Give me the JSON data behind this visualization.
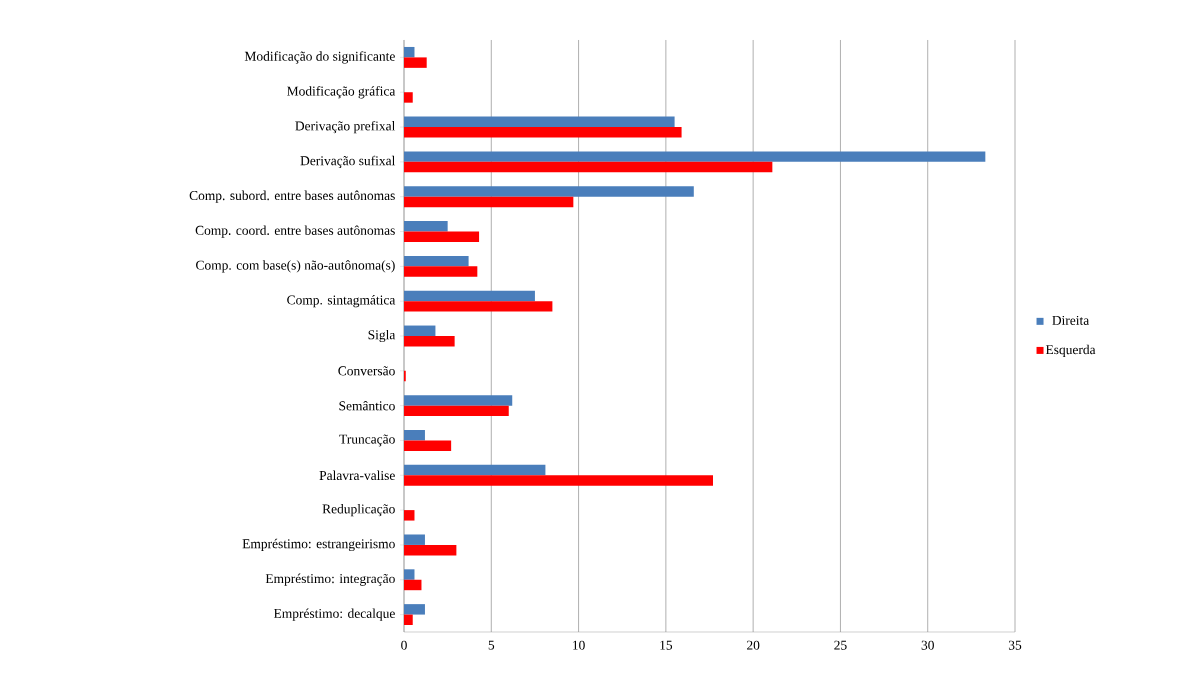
{
  "chart_data": {
    "type": "bar",
    "orientation": "horizontal",
    "categories": [
      "Modificação do significante",
      "Modificação gráfica",
      "Derivação prefixal",
      "Derivação sufixal",
      "Comp. subord. entre bases autônomas",
      "Comp. coord. entre bases autônomas",
      "Comp. com base(s) não-autônoma(s)",
      "Comp. sintagmática",
      "Sigla",
      "Conversão",
      "Semântico",
      "Truncação",
      "Palavra-valise",
      "Reduplicação",
      "Empréstimo: estrangeirismo",
      "Empréstimo: integração",
      "Empréstimo: decalque"
    ],
    "series": [
      {
        "name": "Direita",
        "color": "#4a7ebb",
        "values": [
          0.6,
          0,
          15.5,
          33.3,
          16.6,
          2.5,
          3.7,
          7.5,
          1.8,
          0,
          6.2,
          1.2,
          8.1,
          0,
          1.2,
          0.6,
          1.2
        ]
      },
      {
        "name": "Esquerda",
        "color": "#ff0000",
        "values": [
          1.3,
          0.5,
          15.9,
          21.1,
          9.7,
          4.3,
          4.2,
          8.5,
          2.9,
          0.1,
          6.0,
          2.7,
          17.7,
          0.6,
          3.0,
          1.0,
          0.5
        ]
      }
    ],
    "xlim": [
      0,
      35
    ],
    "xticks": [
      0,
      5,
      10,
      15,
      20,
      25,
      30,
      35
    ],
    "grid": "x",
    "legend": "right"
  }
}
